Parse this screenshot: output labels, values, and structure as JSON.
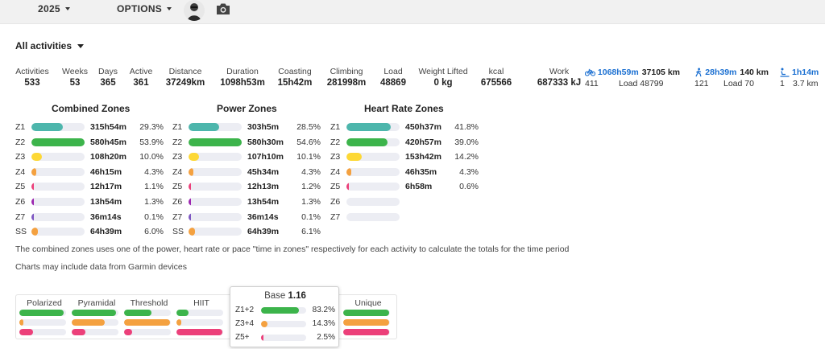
{
  "topbar": {
    "year": "2025",
    "options": "OPTIONS",
    "avatar_icon": "user-avatar",
    "camera_icon": "camera-icon"
  },
  "filter": {
    "label": "All activities"
  },
  "stats": [
    {
      "label": "Activities",
      "value": "533"
    },
    {
      "label": "Weeks",
      "value": "53"
    },
    {
      "label": "Days",
      "value": "365"
    },
    {
      "label": "Active",
      "value": "361"
    },
    {
      "label": "Distance",
      "value": "37249km"
    },
    {
      "label": "Duration",
      "value": "1098h53m"
    },
    {
      "label": "Coasting",
      "value": "15h42m"
    },
    {
      "label": "Climbing",
      "value": "281998m"
    },
    {
      "label": "Load",
      "value": "48869"
    },
    {
      "label": "Weight Lifted",
      "value": "0 kg"
    },
    {
      "label": "kcal",
      "value": "675566"
    },
    {
      "label": "Work",
      "value": "687333 kJ"
    }
  ],
  "sports": [
    {
      "icon": "bike-icon",
      "time": "1068h59m",
      "distance": "37105 km",
      "count": "411",
      "load": "Load 48799"
    },
    {
      "icon": "walk-icon",
      "time": "28h39m",
      "distance": "140 km",
      "count": "121",
      "load": "Load 70"
    },
    {
      "icon": "swim-icon",
      "time": "1h14m",
      "distance": "",
      "count": "1",
      "load": "3.7 km"
    }
  ],
  "colors": {
    "Z1": "#4db6ac",
    "Z2": "#3cb44b",
    "Z3": "#fdd835",
    "Z4": "#f4a140",
    "Z5": "#ec407a",
    "Z6": "#9c27b0",
    "Z7": "#7e57c2",
    "SS": "#f4a140",
    "track": "#ecedf3"
  },
  "zones": {
    "combined": {
      "title": "Combined Zones",
      "rows": [
        {
          "zone": "Z1",
          "time": "315h54m",
          "pct": "29.3%",
          "frac": 0.293
        },
        {
          "zone": "Z2",
          "time": "580h45m",
          "pct": "53.9%",
          "frac": 0.539
        },
        {
          "zone": "Z3",
          "time": "108h20m",
          "pct": "10.0%",
          "frac": 0.1
        },
        {
          "zone": "Z4",
          "time": "46h15m",
          "pct": "4.3%",
          "frac": 0.043
        },
        {
          "zone": "Z5",
          "time": "12h17m",
          "pct": "1.1%",
          "frac": 0.011
        },
        {
          "zone": "Z6",
          "time": "13h54m",
          "pct": "1.3%",
          "frac": 0.013
        },
        {
          "zone": "Z7",
          "time": "36m14s",
          "pct": "0.1%",
          "frac": 0.001
        },
        {
          "zone": "SS",
          "time": "64h39m",
          "pct": "6.0%",
          "frac": 0.06
        }
      ]
    },
    "power": {
      "title": "Power Zones",
      "rows": [
        {
          "zone": "Z1",
          "time": "303h5m",
          "pct": "28.5%",
          "frac": 0.285
        },
        {
          "zone": "Z2",
          "time": "580h30m",
          "pct": "54.6%",
          "frac": 0.546
        },
        {
          "zone": "Z3",
          "time": "107h10m",
          "pct": "10.1%",
          "frac": 0.101
        },
        {
          "zone": "Z4",
          "time": "45h34m",
          "pct": "4.3%",
          "frac": 0.043
        },
        {
          "zone": "Z5",
          "time": "12h13m",
          "pct": "1.2%",
          "frac": 0.012
        },
        {
          "zone": "Z6",
          "time": "13h54m",
          "pct": "1.3%",
          "frac": 0.013
        },
        {
          "zone": "Z7",
          "time": "36m14s",
          "pct": "0.1%",
          "frac": 0.001
        },
        {
          "zone": "SS",
          "time": "64h39m",
          "pct": "6.1%",
          "frac": 0.061
        }
      ]
    },
    "hr": {
      "title": "Heart Rate Zones",
      "rows": [
        {
          "zone": "Z1",
          "time": "450h37m",
          "pct": "41.8%",
          "frac": 0.418
        },
        {
          "zone": "Z2",
          "time": "420h57m",
          "pct": "39.0%",
          "frac": 0.39
        },
        {
          "zone": "Z3",
          "time": "153h42m",
          "pct": "14.2%",
          "frac": 0.142
        },
        {
          "zone": "Z4",
          "time": "46h35m",
          "pct": "4.3%",
          "frac": 0.043
        },
        {
          "zone": "Z5",
          "time": "6h58m",
          "pct": "0.6%",
          "frac": 0.006
        },
        {
          "zone": "Z6",
          "time": "",
          "pct": "",
          "frac": 0
        },
        {
          "zone": "Z7",
          "time": "",
          "pct": "",
          "frac": 0
        }
      ]
    }
  },
  "notes": {
    "combined": "The combined zones uses one of the power, heart rate or pace \"time in zones\" respectively for each activity to calculate the totals for the time period",
    "garmin": "Charts may include data from Garmin devices"
  },
  "distribution": {
    "columns": [
      {
        "name": "Polarized",
        "fracs": [
          0.95,
          0.08,
          0.3
        ]
      },
      {
        "name": "Pyramidal",
        "fracs": [
          0.95,
          0.7,
          0.3
        ]
      },
      {
        "name": "Threshold",
        "fracs": [
          0.58,
          0.98,
          0.18
        ]
      },
      {
        "name": "HIIT",
        "fracs": [
          0.25,
          0.1,
          0.98
        ]
      },
      {
        "name": "Unique",
        "fracs": [
          0.98,
          0.98,
          0.98
        ]
      }
    ],
    "popup": {
      "label": "Base",
      "value": "1.16",
      "rows": [
        {
          "zone": "Z1+2",
          "pct": "83.2%",
          "frac": 0.832,
          "color": "#3cb44b"
        },
        {
          "zone": "Z3+4",
          "pct": "14.3%",
          "frac": 0.143,
          "color": "#f4a140"
        },
        {
          "zone": "Z5+",
          "pct": "2.5%",
          "frac": 0.025,
          "color": "#ec407a"
        }
      ]
    }
  }
}
